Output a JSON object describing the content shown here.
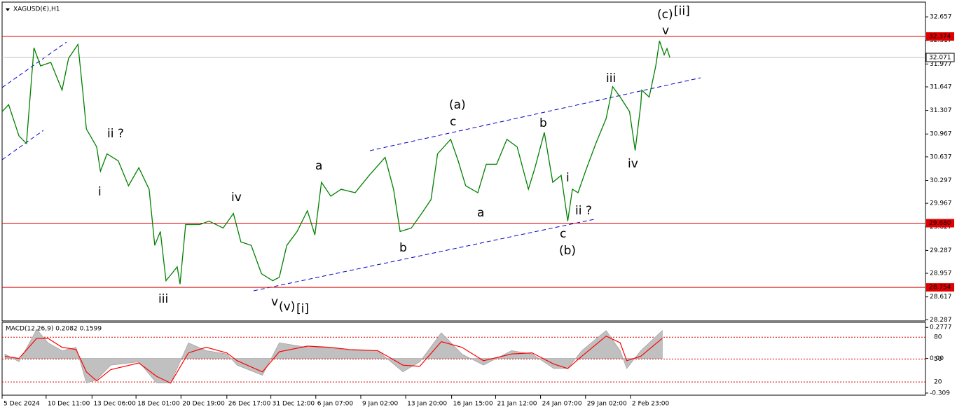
{
  "chart_data": [
    {
      "type": "price",
      "title": "XAGUSD(€),H1",
      "x": [
        -17,
        -10,
        1,
        9,
        17,
        24,
        35,
        47,
        54,
        64,
        69,
        73,
        84,
        88,
        95,
        107,
        118,
        129,
        140,
        146,
        152,
        158,
        170,
        173,
        179,
        194,
        204,
        219,
        230,
        238,
        249,
        260,
        272,
        279,
        287,
        298,
        309,
        317,
        324,
        334,
        345,
        360,
        375,
        392,
        401,
        408,
        420,
        431,
        441,
        448,
        462,
        470,
        478,
        491,
        500,
        511,
        522,
        533,
        545,
        552,
        562,
        571,
        580,
        587,
        592,
        598,
        606,
        617,
        628,
        635,
        643,
        653,
        659,
        665,
        666,
        674,
        681,
        685,
        690,
        693,
        696
      ],
      "series": [
        {
          "color": "#008000",
          "values": [
            31.29,
            31.39,
            30.94,
            30.83,
            32.21,
            31.95,
            32.0,
            31.6,
            32.06,
            32.26,
            31.6,
            31.04,
            30.78,
            30.43,
            30.68,
            30.58,
            30.22,
            30.48,
            30.17,
            29.36,
            29.56,
            28.85,
            29.05,
            28.8,
            29.66,
            29.66,
            29.71,
            29.61,
            29.82,
            29.41,
            29.36,
            28.95,
            28.85,
            28.9,
            29.36,
            29.56,
            29.86,
            29.51,
            30.27,
            30.07,
            30.17,
            30.12,
            30.37,
            30.63,
            30.17,
            29.56,
            29.61,
            29.82,
            30.02,
            30.68,
            30.89,
            30.58,
            30.22,
            30.12,
            30.53,
            30.53,
            30.89,
            30.78,
            30.17,
            30.48,
            30.99,
            30.27,
            30.37,
            29.71,
            30.17,
            30.12,
            30.43,
            30.83,
            31.19,
            31.65,
            31.5,
            31.29,
            30.73,
            31.39,
            31.6,
            31.5,
            31.95,
            32.31,
            32.11,
            32.2,
            32.07
          ]
        }
      ],
      "xlim": [
        -17,
        969
      ],
      "xticks": [
        {
          "value": -17,
          "label": "5 Dec 2024"
        },
        {
          "value": 30,
          "label": "10 Dec 11:00"
        },
        {
          "value": 79,
          "label": "13 Dec 06:00"
        },
        {
          "value": 126,
          "label": "18 Dec 01:00"
        },
        {
          "value": 174,
          "label": "20 Dec 19:00"
        },
        {
          "value": 223,
          "label": "26 Dec 17:00"
        },
        {
          "value": 270,
          "label": "31 Dec 12:00"
        },
        {
          "value": 318,
          "label": "6 Jan 07:00"
        },
        {
          "value": 366,
          "label": "9 Jan 02:00"
        },
        {
          "value": 414,
          "label": "13 Jan 20:00"
        },
        {
          "value": 463,
          "label": "16 Jan 15:00"
        },
        {
          "value": 510,
          "label": "21 Jan 12:00"
        },
        {
          "value": 558,
          "label": "24 Jan 07:00"
        },
        {
          "value": 606,
          "label": "29 Jan 02:00"
        },
        {
          "value": 654,
          "label": "2 Feb 23:00"
        }
      ],
      "ylim": [
        28.27,
        32.87
      ],
      "yticks": [
        32.657,
        32.317,
        31.977,
        31.647,
        31.307,
        30.967,
        30.637,
        30.297,
        29.967,
        29.627,
        29.287,
        28.957,
        28.617,
        28.287
      ],
      "hlines": [
        32.374,
        {
          "value": 29.68,
          "label": "29.680"
        },
        28.754
      ],
      "current": 32.071,
      "annotations": [
        {
          "text": "(c)",
          "color": "#0000c8"
        },
        {
          "text": "[ii]",
          "color": "#008000"
        },
        {
          "text": "v",
          "color": "#e000e0"
        },
        {
          "text": "iii",
          "color": "#e000e0"
        },
        {
          "text": "iv",
          "color": "#e000e0"
        },
        {
          "text": "b",
          "color": "#e000e0"
        },
        {
          "text": "i",
          "color": "#e000e0"
        },
        {
          "text": "ii ?",
          "color": "#e000e0"
        },
        {
          "text": "c",
          "color": "#e000e0"
        },
        {
          "text": "(b)",
          "color": "#0000c8"
        },
        {
          "text": "(a)",
          "color": "#0000c8"
        },
        {
          "text": "c",
          "color": "#e000e0"
        },
        {
          "text": "a",
          "color": "#e000e0"
        },
        {
          "text": "a",
          "color": "#e000e0"
        },
        {
          "text": "b",
          "color": "#e000e0"
        },
        {
          "text": "iv",
          "color": "#e000e0"
        },
        {
          "text": "v",
          "color": "#e000e0"
        },
        {
          "text": "(v)",
          "color": "#0000c8"
        },
        {
          "text": "[i]",
          "color": "#008000"
        },
        {
          "text": "iii",
          "color": "#e000e0"
        },
        {
          "text": "i",
          "color": "#e000e0"
        },
        {
          "text": "ii ?",
          "color": "#e000e0"
        }
      ]
    },
    {
      "type": "macd",
      "title": "MACD(12,26,9) 0.2082 0.1599",
      "x": [
        -14,
        1,
        20,
        32,
        47,
        62,
        73,
        84,
        99,
        129,
        148,
        163,
        182,
        201,
        223,
        234,
        261,
        279,
        309,
        332,
        354,
        384,
        411,
        429,
        452,
        474,
        497,
        527,
        549,
        572,
        587,
        602,
        628,
        643,
        650,
        665,
        688
      ],
      "series": [
        {
          "color": "#c0c0c0",
          "values": [
            0.04,
            -0.03,
            0.26,
            0.14,
            0.07,
            0.1,
            -0.22,
            -0.19,
            -0.06,
            -0.03,
            -0.22,
            -0.22,
            0.14,
            0.07,
            0.04,
            -0.06,
            -0.15,
            0.14,
            0.1,
            0.1,
            0.07,
            0.07,
            -0.12,
            -0.03,
            0.23,
            0.04,
            -0.06,
            0.07,
            0.04,
            -0.09,
            -0.09,
            0.07,
            0.25,
            0.07,
            -0.09,
            0.07,
            0.25
          ]
        },
        {
          "color": "#ff0000",
          "values": [
            0.02,
            0.0,
            0.18,
            0.18,
            0.1,
            0.08,
            -0.12,
            -0.2,
            -0.1,
            -0.04,
            -0.16,
            -0.22,
            0.05,
            0.1,
            0.05,
            -0.02,
            -0.12,
            0.06,
            0.11,
            0.1,
            0.08,
            0.07,
            -0.06,
            -0.07,
            0.15,
            0.1,
            -0.02,
            0.04,
            0.05,
            -0.05,
            -0.09,
            0.02,
            0.2,
            0.14,
            -0.02,
            0.02,
            0.18
          ]
        }
      ],
      "xlim": [
        -17,
        969
      ],
      "ylim": [
        -0.328,
        0.323
      ],
      "yticks": [
        0.2777,
        {
          "value": 0,
          "label": "0.00"
        },
        -0.309
      ],
      "levels": [
        {
          "value": 0.19,
          "label": "80"
        },
        {
          "value": -0.005,
          "label": "50"
        },
        {
          "value": -0.21,
          "label": "20"
        }
      ]
    }
  ]
}
